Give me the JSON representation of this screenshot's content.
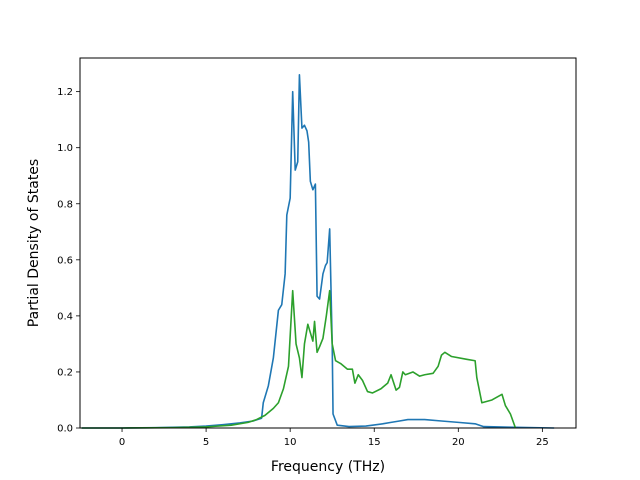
{
  "chart_data": {
    "type": "line",
    "title": "",
    "xlabel": "Frequency (THz)",
    "ylabel": "Partial Density of States",
    "xlim": [
      -2.5,
      27.0
    ],
    "ylim": [
      0.0,
      1.32
    ],
    "xticks": [
      0,
      5,
      10,
      15,
      20,
      25
    ],
    "yticks": [
      0.0,
      0.2,
      0.4,
      0.6,
      0.8,
      1.0,
      1.2
    ],
    "xtick_labels": [
      "0",
      "5",
      "10",
      "15",
      "20",
      "25"
    ],
    "ytick_labels": [
      "0.0",
      "0.2",
      "0.4",
      "0.6",
      "0.8",
      "1.0",
      "1.2"
    ],
    "grid": false,
    "legend": "none",
    "colors": {
      "series_a": "#1f77b4",
      "series_b": "#2ca02c"
    },
    "series": [
      {
        "color": "#1f77b4",
        "points": [
          [
            -2.4,
            0.0
          ],
          [
            0,
            0.0
          ],
          [
            2,
            0.001
          ],
          [
            4,
            0.004
          ],
          [
            5,
            0.007
          ],
          [
            6,
            0.012
          ],
          [
            7,
            0.018
          ],
          [
            7.8,
            0.025
          ],
          [
            8.3,
            0.035
          ],
          [
            8.4,
            0.09
          ],
          [
            8.7,
            0.15
          ],
          [
            9.0,
            0.25
          ],
          [
            9.3,
            0.42
          ],
          [
            9.5,
            0.44
          ],
          [
            9.7,
            0.55
          ],
          [
            9.8,
            0.76
          ],
          [
            10.0,
            0.82
          ],
          [
            10.15,
            1.2
          ],
          [
            10.3,
            0.92
          ],
          [
            10.45,
            0.95
          ],
          [
            10.55,
            1.26
          ],
          [
            10.7,
            1.07
          ],
          [
            10.85,
            1.08
          ],
          [
            11.0,
            1.06
          ],
          [
            11.1,
            1.02
          ],
          [
            11.2,
            0.88
          ],
          [
            11.35,
            0.85
          ],
          [
            11.5,
            0.87
          ],
          [
            11.6,
            0.47
          ],
          [
            11.75,
            0.46
          ],
          [
            11.95,
            0.55
          ],
          [
            12.1,
            0.58
          ],
          [
            12.2,
            0.59
          ],
          [
            12.35,
            0.71
          ],
          [
            12.5,
            0.3
          ],
          [
            12.55,
            0.05
          ],
          [
            12.8,
            0.01
          ],
          [
            13.5,
            0.005
          ],
          [
            14.5,
            0.007
          ],
          [
            15.5,
            0.015
          ],
          [
            16.0,
            0.02
          ],
          [
            16.5,
            0.025
          ],
          [
            17.0,
            0.03
          ],
          [
            18.0,
            0.03
          ],
          [
            19.0,
            0.025
          ],
          [
            20.0,
            0.02
          ],
          [
            21.0,
            0.015
          ],
          [
            21.5,
            0.005
          ],
          [
            23.0,
            0.003
          ],
          [
            25.7,
            0.0
          ]
        ]
      },
      {
        "color": "#2ca02c",
        "points": [
          [
            -2.4,
            0.0
          ],
          [
            0,
            0.0
          ],
          [
            3,
            0.001
          ],
          [
            5,
            0.004
          ],
          [
            6.5,
            0.01
          ],
          [
            7.5,
            0.02
          ],
          [
            8.0,
            0.03
          ],
          [
            8.5,
            0.045
          ],
          [
            9.0,
            0.07
          ],
          [
            9.3,
            0.09
          ],
          [
            9.6,
            0.14
          ],
          [
            9.9,
            0.22
          ],
          [
            10.15,
            0.49
          ],
          [
            10.35,
            0.3
          ],
          [
            10.55,
            0.25
          ],
          [
            10.7,
            0.18
          ],
          [
            10.85,
            0.3
          ],
          [
            11.05,
            0.37
          ],
          [
            11.2,
            0.34
          ],
          [
            11.35,
            0.31
          ],
          [
            11.45,
            0.38
          ],
          [
            11.6,
            0.27
          ],
          [
            11.75,
            0.29
          ],
          [
            11.95,
            0.32
          ],
          [
            12.15,
            0.4
          ],
          [
            12.35,
            0.49
          ],
          [
            12.5,
            0.3
          ],
          [
            12.7,
            0.24
          ],
          [
            13.0,
            0.23
          ],
          [
            13.4,
            0.21
          ],
          [
            13.7,
            0.21
          ],
          [
            13.85,
            0.16
          ],
          [
            14.05,
            0.19
          ],
          [
            14.3,
            0.17
          ],
          [
            14.6,
            0.13
          ],
          [
            14.9,
            0.125
          ],
          [
            15.4,
            0.14
          ],
          [
            15.8,
            0.16
          ],
          [
            16.0,
            0.19
          ],
          [
            16.3,
            0.135
          ],
          [
            16.5,
            0.145
          ],
          [
            16.7,
            0.2
          ],
          [
            16.85,
            0.19
          ],
          [
            17.3,
            0.2
          ],
          [
            17.7,
            0.185
          ],
          [
            18.0,
            0.19
          ],
          [
            18.5,
            0.195
          ],
          [
            18.8,
            0.22
          ],
          [
            19.0,
            0.26
          ],
          [
            19.2,
            0.27
          ],
          [
            19.6,
            0.255
          ],
          [
            20.5,
            0.245
          ],
          [
            21.0,
            0.24
          ],
          [
            21.1,
            0.18
          ],
          [
            21.4,
            0.09
          ],
          [
            22.0,
            0.1
          ],
          [
            22.6,
            0.12
          ],
          [
            22.8,
            0.08
          ],
          [
            23.1,
            0.05
          ],
          [
            23.4,
            0.0
          ]
        ]
      }
    ]
  }
}
